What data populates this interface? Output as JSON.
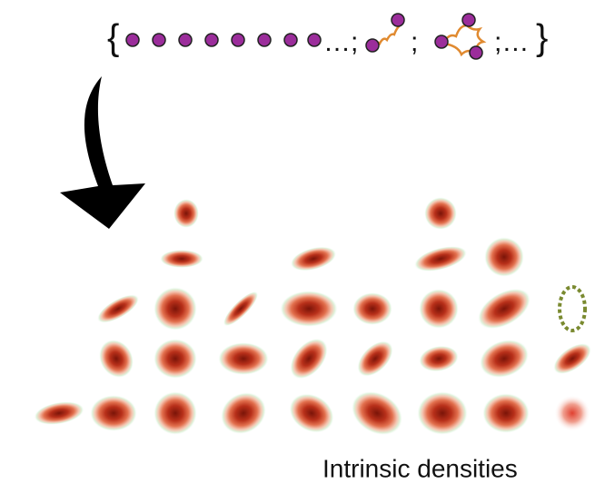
{
  "set": {
    "open_brace": "{",
    "separators": [
      "…;",
      ";",
      ";…"
    ],
    "close_brace": "}"
  },
  "caption": "Intrinsic densities"
}
